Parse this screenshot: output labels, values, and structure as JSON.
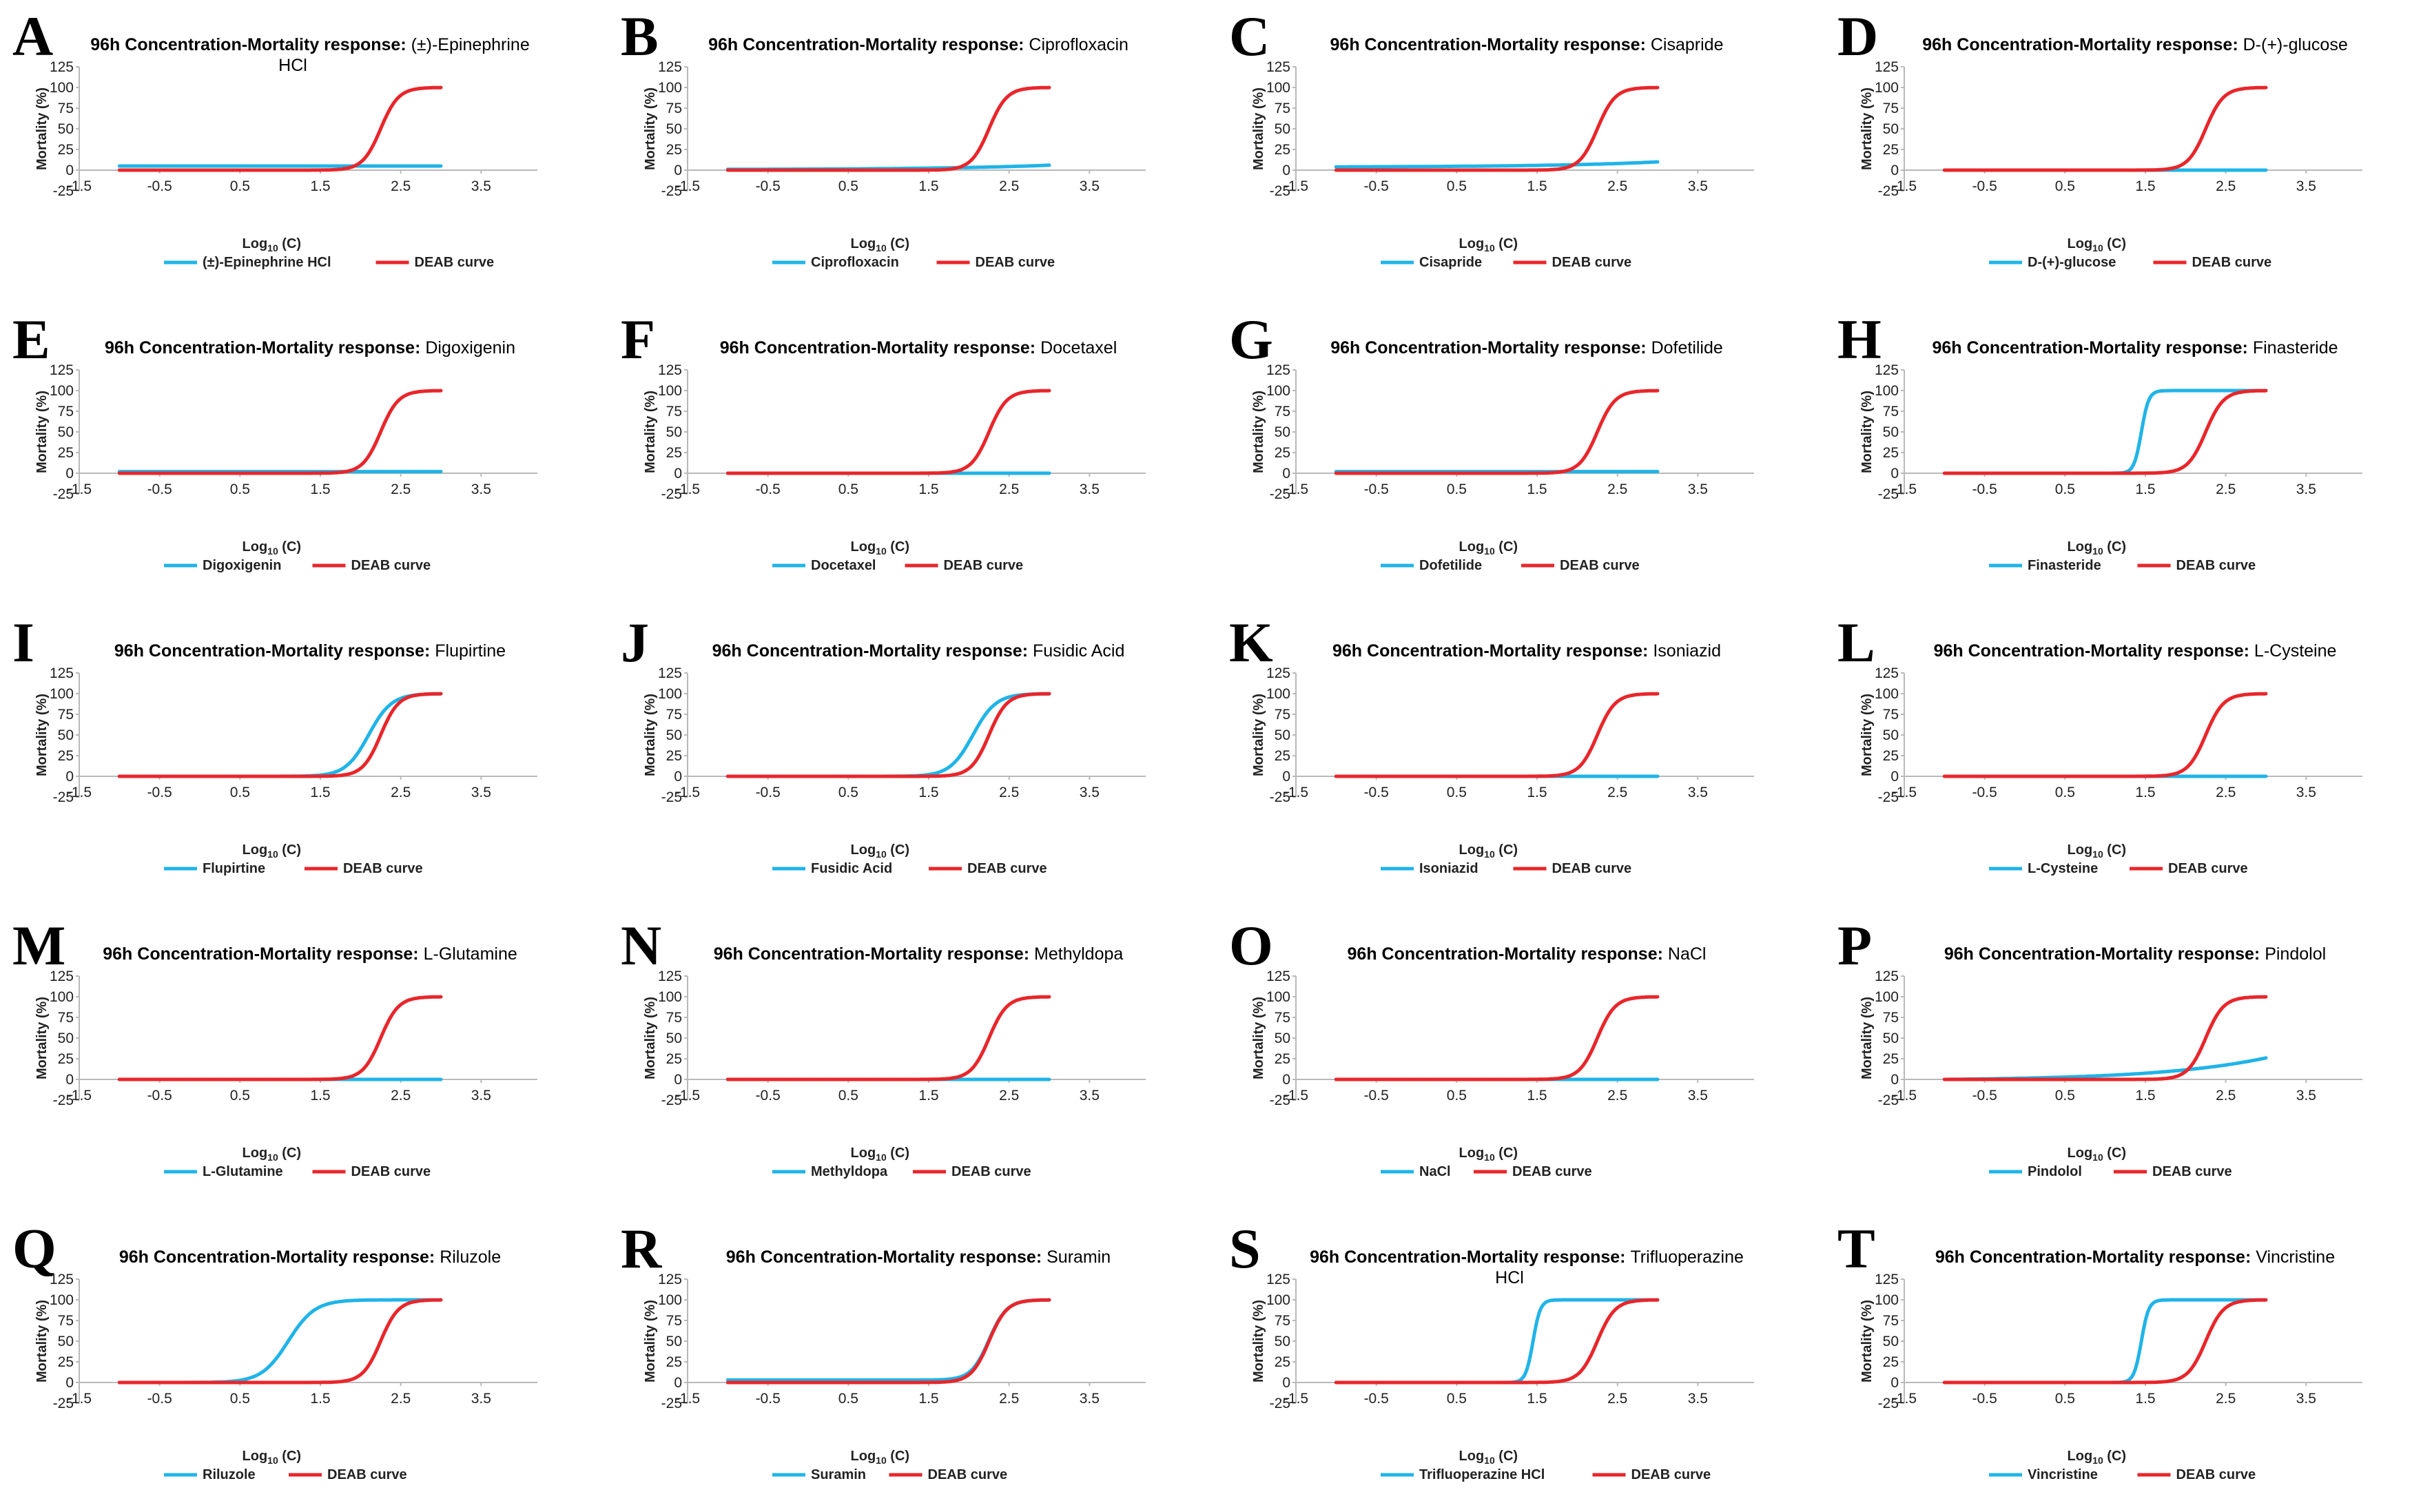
{
  "figure": {
    "title_prefix": "96h Concentration-Mortality response:",
    "xlabel_main": "Log",
    "xlabel_sub": "10",
    "xlabel_tail": " (C)",
    "ylabel": "Mortality (%)"
  },
  "colors": {
    "drug": "#1fb4e8",
    "deab": "#e8262b"
  },
  "chart_data": [
    {
      "label": "A",
      "type": "line",
      "drug": "(±)-Epinephrine HCl",
      "title_lines": [
        "(±)-Epinephrine",
        "HCl"
      ],
      "xlim": [
        -1.5,
        4.2
      ],
      "ylim": [
        -25,
        125
      ],
      "xticks": [
        "-1.5",
        "-0.5",
        "0.5",
        "1.5",
        "2.5",
        "3.5"
      ],
      "yticks": [
        "-25",
        "0",
        "25",
        "50",
        "75",
        "100",
        "125"
      ],
      "series": [
        {
          "name": "(±)-Epinephrine HCl",
          "model": "linear",
          "x": [
            -1,
            3
          ],
          "y": [
            5,
            5
          ]
        },
        {
          "name": "DEAB curve",
          "model": "sigmoid",
          "ec50": 2.25,
          "slope": 9,
          "bottom": 0,
          "top": 100,
          "x": [
            -1,
            3
          ]
        }
      ]
    },
    {
      "label": "B",
      "type": "line",
      "drug": "Ciprofloxacin",
      "title_lines": [
        "Ciprofloxacin"
      ],
      "xlim": [
        -1.5,
        4.2
      ],
      "ylim": [
        -25,
        125
      ],
      "xticks": [
        "-1.5",
        "-0.5",
        "0.5",
        "1.5",
        "2.5",
        "3.5"
      ],
      "yticks": [
        "-25",
        "0",
        "25",
        "50",
        "75",
        "100",
        "125"
      ],
      "series": [
        {
          "name": "Ciprofloxacin",
          "model": "exp",
          "x": [
            -1,
            3
          ],
          "y": [
            1,
            6
          ]
        },
        {
          "name": "DEAB curve",
          "model": "sigmoid",
          "ec50": 2.25,
          "slope": 9,
          "bottom": 0,
          "top": 100,
          "x": [
            -1,
            3
          ]
        }
      ]
    },
    {
      "label": "C",
      "type": "line",
      "drug": "Cisapride",
      "title_lines": [
        "Cisapride"
      ],
      "xlim": [
        -1.5,
        4.2
      ],
      "ylim": [
        -25,
        125
      ],
      "xticks": [
        "-1.5",
        "-0.5",
        "0.5",
        "1.5",
        "2.5",
        "3.5"
      ],
      "yticks": [
        "-25",
        "0",
        "25",
        "50",
        "75",
        "100",
        "125"
      ],
      "series": [
        {
          "name": "Cisapride",
          "model": "exp",
          "x": [
            -1,
            3
          ],
          "y": [
            4,
            10
          ]
        },
        {
          "name": "DEAB curve",
          "model": "sigmoid",
          "ec50": 2.25,
          "slope": 9,
          "bottom": 0,
          "top": 100,
          "x": [
            -1,
            3
          ]
        }
      ]
    },
    {
      "label": "D",
      "type": "line",
      "drug": "D-(+)-glucose",
      "title_lines": [
        "D-(+)-glucose"
      ],
      "xlim": [
        -1.5,
        4.2
      ],
      "ylim": [
        -25,
        125
      ],
      "xticks": [
        "-1.5",
        "-0.5",
        "0.5",
        "1.5",
        "2.5",
        "3.5"
      ],
      "yticks": [
        "-25",
        "0",
        "25",
        "50",
        "75",
        "100",
        "125"
      ],
      "series": [
        {
          "name": "D-(+)-glucose",
          "model": "linear",
          "x": [
            -1,
            3
          ],
          "y": [
            0,
            0
          ]
        },
        {
          "name": "DEAB curve",
          "model": "sigmoid",
          "ec50": 2.25,
          "slope": 9,
          "bottom": 0,
          "top": 100,
          "x": [
            -1,
            3
          ]
        }
      ]
    },
    {
      "label": "E",
      "type": "line",
      "drug": "Digoxigenin",
      "title_lines": [
        "Digoxigenin"
      ],
      "xlim": [
        -1.5,
        4.2
      ],
      "ylim": [
        -25,
        125
      ],
      "xticks": [
        "-1.5",
        "-0.5",
        "0.5",
        "1.5",
        "2.5",
        "3.5"
      ],
      "yticks": [
        "-25",
        "0",
        "25",
        "50",
        "75",
        "100",
        "125"
      ],
      "series": [
        {
          "name": "Digoxigenin",
          "model": "linear",
          "x": [
            -1,
            3
          ],
          "y": [
            2,
            2
          ]
        },
        {
          "name": "DEAB curve",
          "model": "sigmoid",
          "ec50": 2.25,
          "slope": 9,
          "bottom": 0,
          "top": 100,
          "x": [
            -1,
            3
          ]
        }
      ]
    },
    {
      "label": "F",
      "type": "line",
      "drug": "Docetaxel",
      "title_lines": [
        "Docetaxel"
      ],
      "xlim": [
        -1.5,
        4.2
      ],
      "ylim": [
        -25,
        125
      ],
      "xticks": [
        "-1.5",
        "-0.5",
        "0.5",
        "1.5",
        "2.5",
        "3.5"
      ],
      "yticks": [
        "-25",
        "0",
        "25",
        "50",
        "75",
        "100",
        "125"
      ],
      "series": [
        {
          "name": "Docetaxel",
          "model": "linear",
          "x": [
            -1,
            3
          ],
          "y": [
            0,
            0
          ]
        },
        {
          "name": "DEAB curve",
          "model": "sigmoid",
          "ec50": 2.25,
          "slope": 9,
          "bottom": 0,
          "top": 100,
          "x": [
            -1,
            3
          ]
        }
      ]
    },
    {
      "label": "G",
      "type": "line",
      "drug": "Dofetilide",
      "title_lines": [
        "Dofetilide"
      ],
      "xlim": [
        -1.5,
        4.2
      ],
      "ylim": [
        -25,
        125
      ],
      "xticks": [
        "-1.5",
        "-0.5",
        "0.5",
        "1.5",
        "2.5",
        "3.5"
      ],
      "yticks": [
        "-25",
        "0",
        "25",
        "50",
        "75",
        "100",
        "125"
      ],
      "series": [
        {
          "name": "Dofetilide",
          "model": "linear",
          "x": [
            -1,
            3
          ],
          "y": [
            2,
            2
          ]
        },
        {
          "name": "DEAB curve",
          "model": "sigmoid",
          "ec50": 2.25,
          "slope": 9,
          "bottom": 0,
          "top": 100,
          "x": [
            -1,
            3
          ]
        }
      ]
    },
    {
      "label": "H",
      "type": "line",
      "drug": "Finasteride",
      "title_lines": [
        "Finasteride"
      ],
      "xlim": [
        -1.5,
        4.2
      ],
      "ylim": [
        -25,
        125
      ],
      "xticks": [
        "-1.5",
        "-0.5",
        "0.5",
        "1.5",
        "2.5",
        "3.5"
      ],
      "yticks": [
        "-25",
        "0",
        "25",
        "50",
        "75",
        "100",
        "125"
      ],
      "series": [
        {
          "name": "Finasteride",
          "model": "sigmoid",
          "ec50": 1.45,
          "slope": 22,
          "bottom": 0,
          "top": 100,
          "x": [
            -1,
            3
          ]
        },
        {
          "name": "DEAB curve",
          "model": "sigmoid",
          "ec50": 2.25,
          "slope": 9,
          "bottom": 0,
          "top": 100,
          "x": [
            -1,
            3
          ]
        }
      ]
    },
    {
      "label": "I",
      "type": "line",
      "drug": "Flupirtine",
      "title_lines": [
        "Flupirtine"
      ],
      "xlim": [
        -1.5,
        4.2
      ],
      "ylim": [
        -25,
        125
      ],
      "xticks": [
        "-1.5",
        "-0.5",
        "0.5",
        "1.5",
        "2.5",
        "3.5"
      ],
      "yticks": [
        "-25",
        "0",
        "25",
        "50",
        "75",
        "100",
        "125"
      ],
      "series": [
        {
          "name": "Flupirtine",
          "model": "sigmoid",
          "ec50": 2.1,
          "slope": 7,
          "bottom": 0,
          "top": 100,
          "x": [
            -1,
            3
          ]
        },
        {
          "name": "DEAB curve",
          "model": "sigmoid",
          "ec50": 2.25,
          "slope": 9,
          "bottom": 0,
          "top": 100,
          "x": [
            -1,
            3
          ]
        }
      ]
    },
    {
      "label": "J",
      "type": "line",
      "drug": "Fusidic Acid",
      "title_lines": [
        "Fusidic Acid"
      ],
      "xlim": [
        -1.5,
        4.2
      ],
      "ylim": [
        -25,
        125
      ],
      "xticks": [
        "-1.5",
        "-0.5",
        "0.5",
        "1.5",
        "2.5",
        "3.5"
      ],
      "yticks": [
        "-25",
        "0",
        "25",
        "50",
        "75",
        "100",
        "125"
      ],
      "series": [
        {
          "name": "Fusidic Acid",
          "model": "sigmoid",
          "ec50": 2.05,
          "slope": 7,
          "bottom": 0,
          "top": 100,
          "x": [
            -1,
            3
          ]
        },
        {
          "name": "DEAB curve",
          "model": "sigmoid",
          "ec50": 2.25,
          "slope": 9,
          "bottom": 0,
          "top": 100,
          "x": [
            -1,
            3
          ]
        }
      ]
    },
    {
      "label": "K",
      "type": "line",
      "drug": "Isoniazid",
      "title_lines": [
        "Isoniazid"
      ],
      "xlim": [
        -1.5,
        4.2
      ],
      "ylim": [
        -25,
        125
      ],
      "xticks": [
        "-1.5",
        "-0.5",
        "0.5",
        "1.5",
        "2.5",
        "3.5"
      ],
      "yticks": [
        "-25",
        "0",
        "25",
        "50",
        "75",
        "100",
        "125"
      ],
      "series": [
        {
          "name": "Isoniazid",
          "model": "linear",
          "x": [
            -1,
            3
          ],
          "y": [
            0,
            0
          ]
        },
        {
          "name": "DEAB curve",
          "model": "sigmoid",
          "ec50": 2.25,
          "slope": 9,
          "bottom": 0,
          "top": 100,
          "x": [
            -1,
            3
          ]
        }
      ]
    },
    {
      "label": "L",
      "type": "line",
      "drug": "L-Cysteine",
      "title_lines": [
        "L-Cysteine"
      ],
      "xlim": [
        -1.5,
        4.2
      ],
      "ylim": [
        -25,
        125
      ],
      "xticks": [
        "-1.5",
        "-0.5",
        "0.5",
        "1.5",
        "2.5",
        "3.5"
      ],
      "yticks": [
        "-25",
        "0",
        "25",
        "50",
        "75",
        "100",
        "125"
      ],
      "series": [
        {
          "name": "L-Cysteine",
          "model": "linear",
          "x": [
            -1,
            3
          ],
          "y": [
            0,
            0
          ]
        },
        {
          "name": "DEAB curve",
          "model": "sigmoid",
          "ec50": 2.25,
          "slope": 9,
          "bottom": 0,
          "top": 100,
          "x": [
            -1,
            3
          ]
        }
      ]
    },
    {
      "label": "M",
      "type": "line",
      "drug": "L-Glutamine",
      "title_lines": [
        "L-Glutamine"
      ],
      "xlim": [
        -1.5,
        4.2
      ],
      "ylim": [
        -25,
        125
      ],
      "xticks": [
        "-1.5",
        "-0.5",
        "0.5",
        "1.5",
        "2.5",
        "3.5"
      ],
      "yticks": [
        "-25",
        "0",
        "25",
        "50",
        "75",
        "100",
        "125"
      ],
      "series": [
        {
          "name": "L-Glutamine",
          "model": "linear",
          "x": [
            -1,
            3
          ],
          "y": [
            0,
            0
          ]
        },
        {
          "name": "DEAB curve",
          "model": "sigmoid",
          "ec50": 2.25,
          "slope": 9,
          "bottom": 0,
          "top": 100,
          "x": [
            -1,
            3
          ]
        }
      ]
    },
    {
      "label": "N",
      "type": "line",
      "drug": "Methyldopa",
      "title_lines": [
        "Methyldopa"
      ],
      "xlim": [
        -1.5,
        4.2
      ],
      "ylim": [
        -25,
        125
      ],
      "xticks": [
        "-1.5",
        "-0.5",
        "0.5",
        "1.5",
        "2.5",
        "3.5"
      ],
      "yticks": [
        "-25",
        "0",
        "25",
        "50",
        "75",
        "100",
        "125"
      ],
      "series": [
        {
          "name": "Methyldopa",
          "model": "linear",
          "x": [
            -1,
            3
          ],
          "y": [
            0,
            0
          ]
        },
        {
          "name": "DEAB curve",
          "model": "sigmoid",
          "ec50": 2.25,
          "slope": 9,
          "bottom": 0,
          "top": 100,
          "x": [
            -1,
            3
          ]
        }
      ]
    },
    {
      "label": "O",
      "type": "line",
      "drug": "NaCl",
      "title_lines": [
        "NaCl"
      ],
      "xlim": [
        -1.5,
        4.2
      ],
      "ylim": [
        -25,
        125
      ],
      "xticks": [
        "-1.5",
        "-0.5",
        "0.5",
        "1.5",
        "2.5",
        "3.5"
      ],
      "yticks": [
        "-25",
        "0",
        "25",
        "50",
        "75",
        "100",
        "125"
      ],
      "series": [
        {
          "name": "NaCl",
          "model": "linear",
          "x": [
            -1,
            3
          ],
          "y": [
            0,
            0
          ]
        },
        {
          "name": "DEAB curve",
          "model": "sigmoid",
          "ec50": 2.25,
          "slope": 9,
          "bottom": 0,
          "top": 100,
          "x": [
            -1,
            3
          ]
        }
      ]
    },
    {
      "label": "P",
      "type": "line",
      "drug": "Pindolol",
      "title_lines": [
        "Pindolol"
      ],
      "xlim": [
        -1.5,
        4.2
      ],
      "ylim": [
        -25,
        125
      ],
      "xticks": [
        "-1.5",
        "-0.5",
        "0.5",
        "1.5",
        "2.5",
        "3.5"
      ],
      "yticks": [
        "-25",
        "0",
        "25",
        "50",
        "75",
        "100",
        "125"
      ],
      "series": [
        {
          "name": "Pindolol",
          "model": "exp",
          "x": [
            -1,
            3
          ],
          "y": [
            0,
            26
          ]
        },
        {
          "name": "DEAB curve",
          "model": "sigmoid",
          "ec50": 2.25,
          "slope": 9,
          "bottom": 0,
          "top": 100,
          "x": [
            -1,
            3
          ]
        }
      ]
    },
    {
      "label": "Q",
      "type": "line",
      "drug": "Riluzole",
      "title_lines": [
        "Riluzole"
      ],
      "xlim": [
        -1.5,
        4.2
      ],
      "ylim": [
        -25,
        125
      ],
      "xticks": [
        "-1.5",
        "-0.5",
        "0.5",
        "1.5",
        "2.5",
        "3.5"
      ],
      "yticks": [
        "-25",
        "0",
        "25",
        "50",
        "75",
        "100",
        "125"
      ],
      "series": [
        {
          "name": "Riluzole",
          "model": "sigmoid",
          "ec50": 1.1,
          "slope": 6,
          "bottom": 0,
          "top": 100,
          "x": [
            -1,
            3
          ]
        },
        {
          "name": "DEAB curve",
          "model": "sigmoid",
          "ec50": 2.25,
          "slope": 9,
          "bottom": 0,
          "top": 100,
          "x": [
            -1,
            3
          ]
        }
      ]
    },
    {
      "label": "R",
      "type": "line",
      "drug": "Suramin",
      "title_lines": [
        "Suramin"
      ],
      "xlim": [
        -1.5,
        4.2
      ],
      "ylim": [
        -25,
        125
      ],
      "xticks": [
        "-1.5",
        "-0.5",
        "0.5",
        "1.5",
        "2.5",
        "3.5"
      ],
      "yticks": [
        "-25",
        "0",
        "25",
        "50",
        "75",
        "100",
        "125"
      ],
      "series": [
        {
          "name": "Suramin",
          "model": "sigmoid",
          "ec50": 2.25,
          "slope": 9,
          "bottom": 3,
          "top": 100,
          "x": [
            -1,
            3
          ]
        },
        {
          "name": "DEAB curve",
          "model": "sigmoid",
          "ec50": 2.25,
          "slope": 9,
          "bottom": 0,
          "top": 100,
          "x": [
            -1,
            3
          ]
        }
      ]
    },
    {
      "label": "S",
      "type": "line",
      "drug": "Trifluoperazine HCl",
      "title_lines": [
        "Trifluoperazine",
        "HCl"
      ],
      "xlim": [
        -1.5,
        4.2
      ],
      "ylim": [
        -25,
        125
      ],
      "xticks": [
        "-1.5",
        "-0.5",
        "0.5",
        "1.5",
        "2.5",
        "3.5"
      ],
      "yticks": [
        "-25",
        "0",
        "25",
        "50",
        "75",
        "100",
        "125"
      ],
      "series": [
        {
          "name": "Trifluoperazine HCl",
          "model": "sigmoid",
          "ec50": 1.45,
          "slope": 22,
          "bottom": 0,
          "top": 100,
          "x": [
            -1,
            3
          ]
        },
        {
          "name": "DEAB curve",
          "model": "sigmoid",
          "ec50": 2.25,
          "slope": 9,
          "bottom": 0,
          "top": 100,
          "x": [
            -1,
            3
          ]
        }
      ]
    },
    {
      "label": "T",
      "type": "line",
      "drug": "Vincristine",
      "title_lines": [
        "Vincristine"
      ],
      "xlim": [
        -1.5,
        4.2
      ],
      "ylim": [
        -25,
        125
      ],
      "xticks": [
        "-1.5",
        "-0.5",
        "0.5",
        "1.5",
        "2.5",
        "3.5"
      ],
      "yticks": [
        "-25",
        "0",
        "25",
        "50",
        "75",
        "100",
        "125"
      ],
      "series": [
        {
          "name": "Vincristine",
          "model": "sigmoid",
          "ec50": 1.45,
          "slope": 22,
          "bottom": 0,
          "top": 100,
          "x": [
            -1,
            3
          ]
        },
        {
          "name": "DEAB curve",
          "model": "sigmoid",
          "ec50": 2.25,
          "slope": 9,
          "bottom": 0,
          "top": 100,
          "x": [
            -1,
            3
          ]
        }
      ]
    }
  ]
}
